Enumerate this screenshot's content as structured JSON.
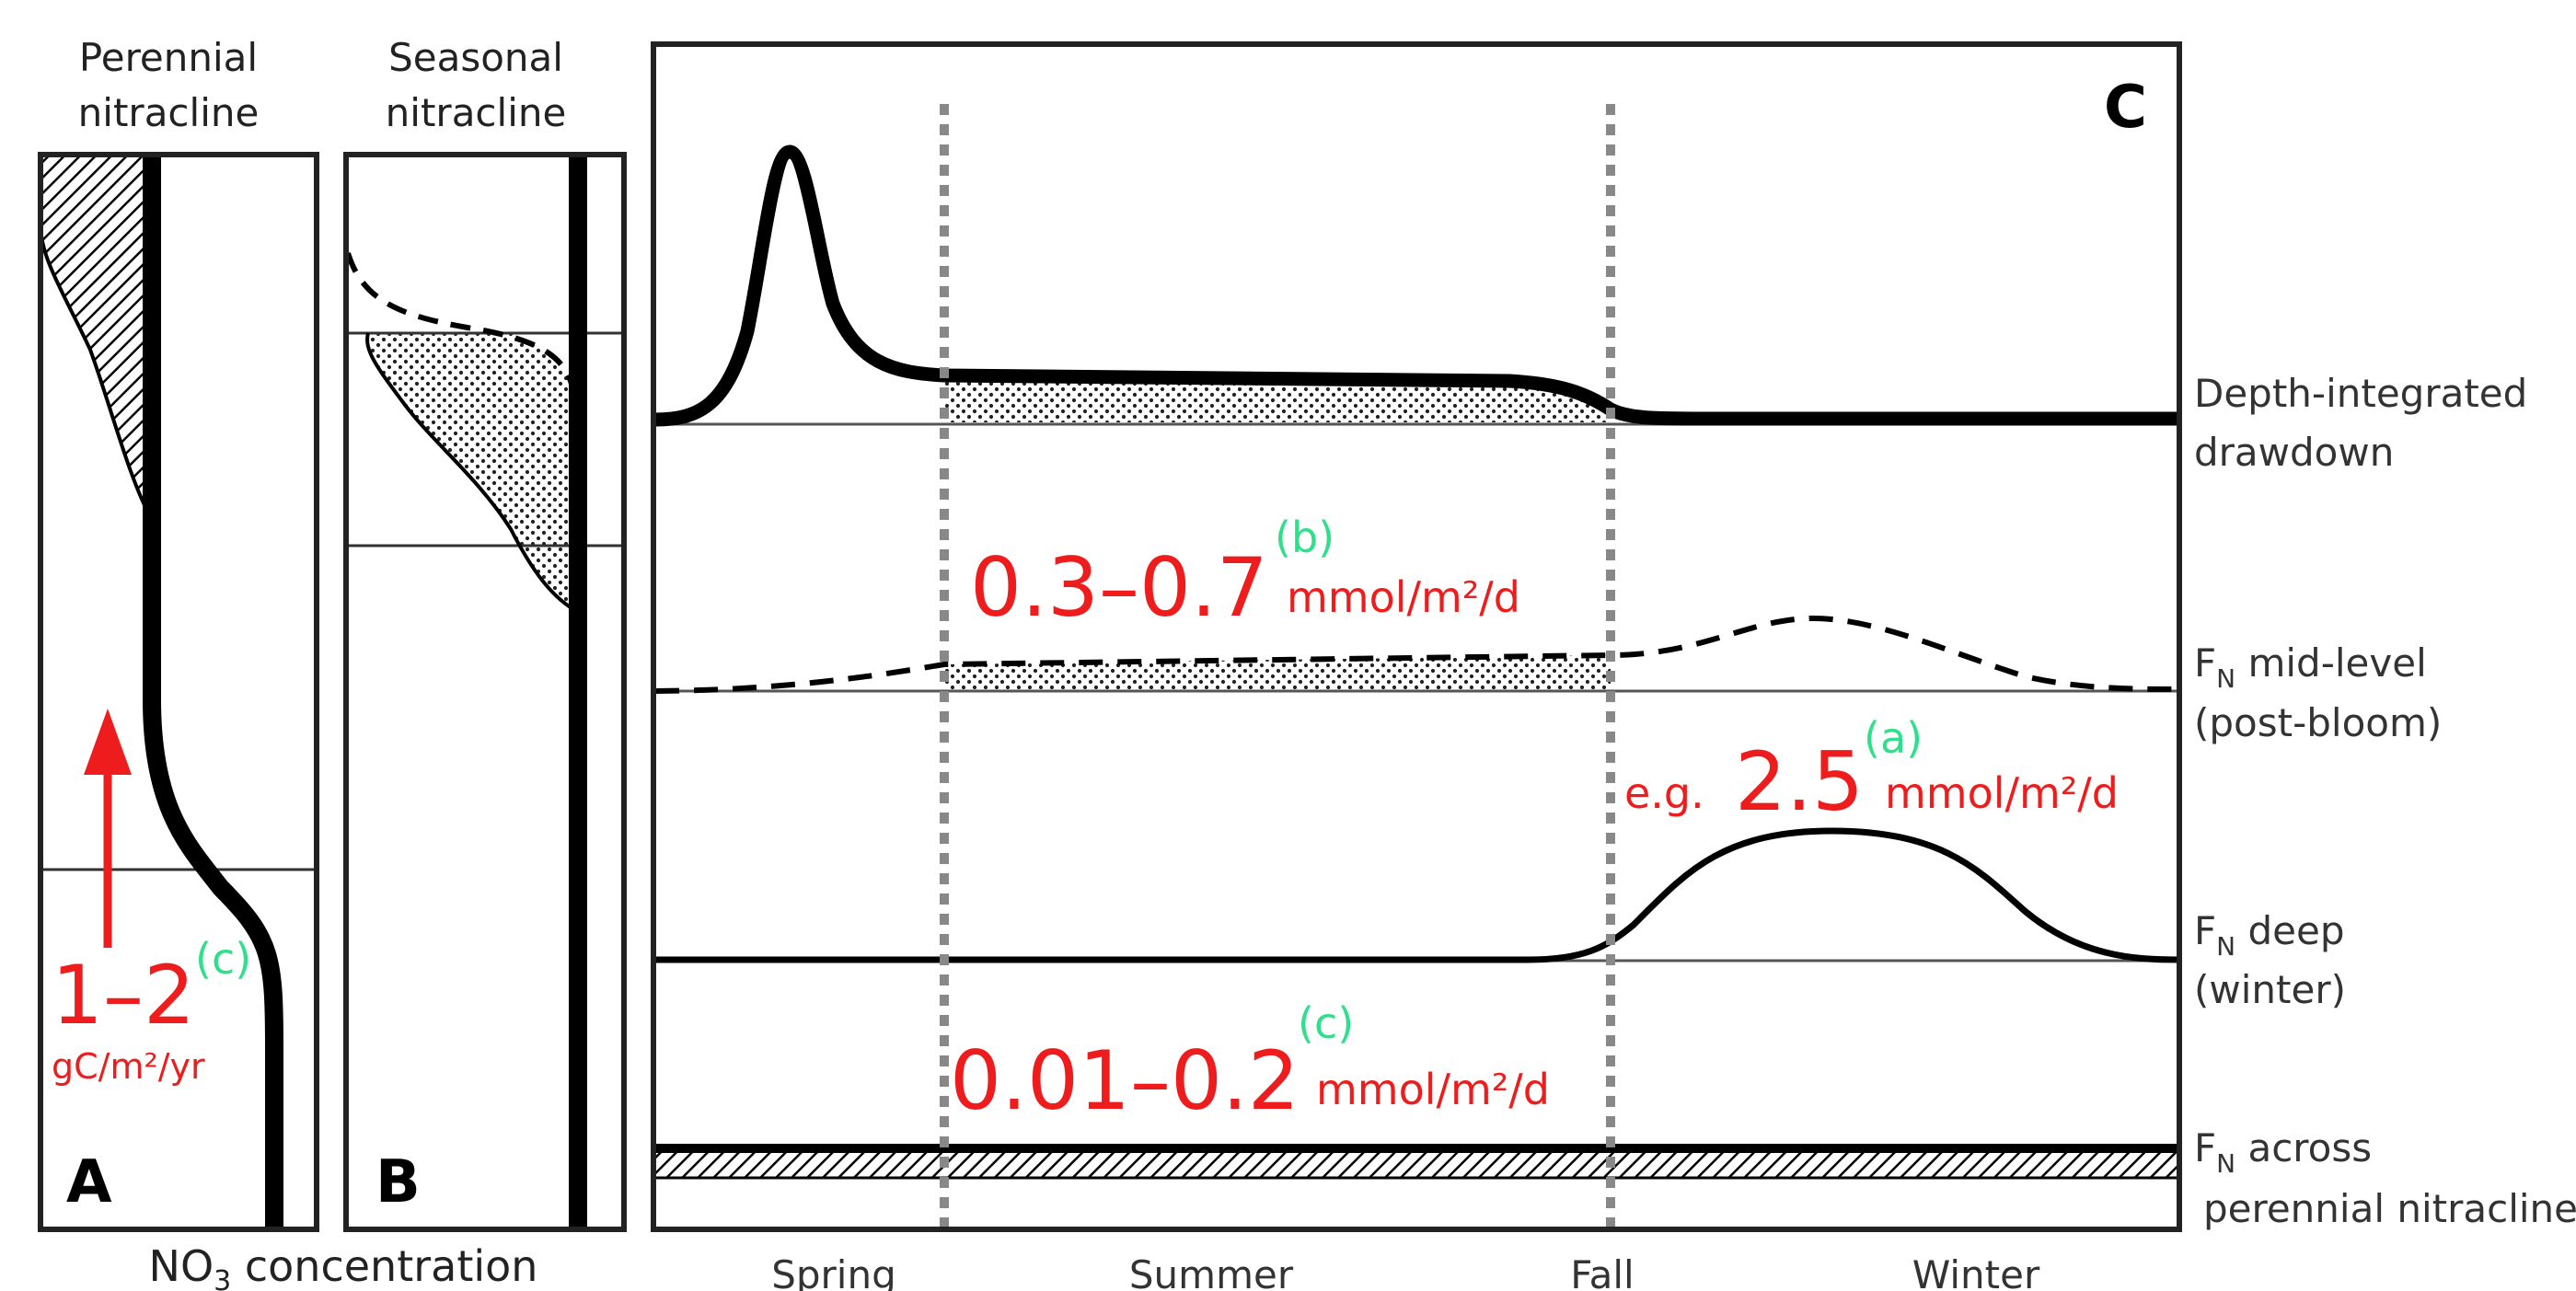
{
  "panels": {
    "a": {
      "letter": "A",
      "header_line1": "Perennial",
      "header_line2": "nitracline",
      "flux_value": "1–2",
      "flux_ref": "(c)",
      "flux_units": "gC/m²/yr"
    },
    "b": {
      "letter": "B",
      "header_line1": "Seasonal",
      "header_line2": "nitracline"
    },
    "c": {
      "letter": "C",
      "seasons": [
        "Spring",
        "Summer",
        "Fall",
        "Winter"
      ],
      "rows": [
        {
          "label_line1": "Depth-integrated",
          "label_line2": "drawdown"
        },
        {
          "label_main": "F",
          "label_sub": "N",
          "label_rest": " mid-level",
          "label_line2": "(post-bloom)"
        },
        {
          "label_main": "F",
          "label_sub": "N",
          "label_rest": " deep",
          "label_line2": "(winter)"
        },
        {
          "label_main": "F",
          "label_sub": "N",
          "label_rest": " across",
          "label_line2": "perennial nitracline"
        }
      ],
      "annotations": {
        "mid": {
          "value": "0.3–0.7",
          "units": "mmol/m²/d",
          "ref": "(b)"
        },
        "deep": {
          "prefix": "e.g. ",
          "value": "2.5",
          "units": "mmol/m²/d",
          "ref": "(a)"
        },
        "across": {
          "value": "0.01–0.2",
          "units": "mmol/m²/d",
          "ref": "(c)"
        }
      }
    }
  },
  "x_axis_label": {
    "prefix": "NO",
    "sub": "3",
    "suffix": " concentration"
  },
  "colors": {
    "annotation": "#ee1c1c",
    "reference": "#2fe08a",
    "divider": "#888888"
  }
}
